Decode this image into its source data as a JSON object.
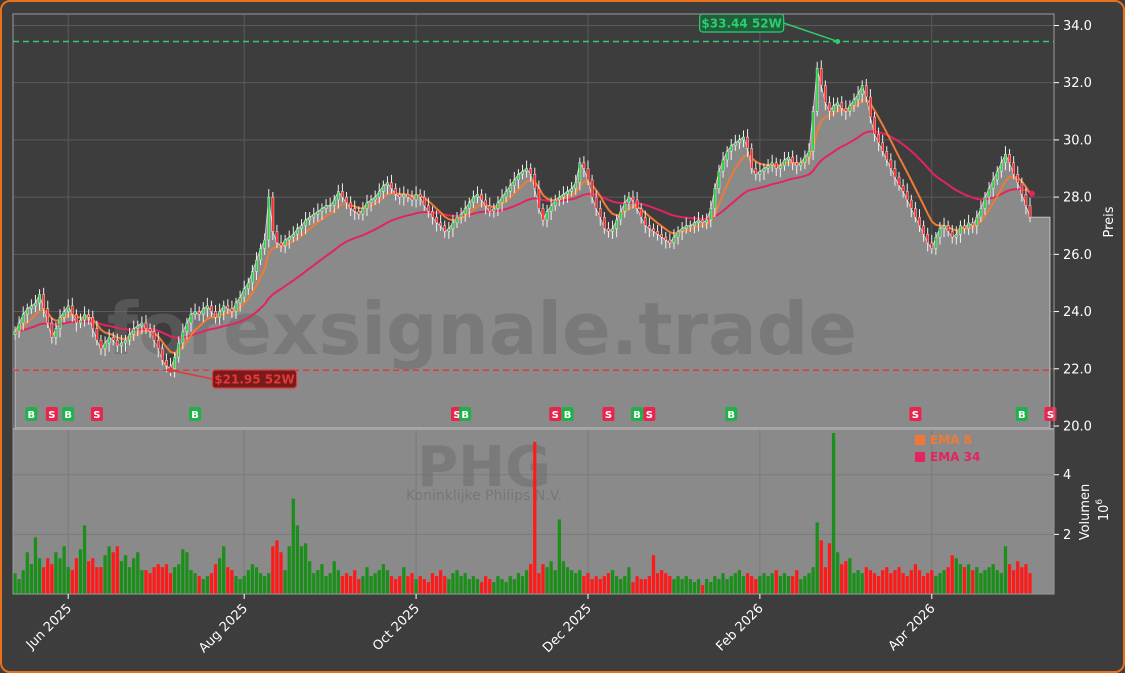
{
  "chart_data": {
    "type": "candlestick",
    "ticker": "PHG",
    "company": "Koninklijke Philips N.V.",
    "watermark": "forexsignale.trade",
    "price_axis": {
      "label": "Preis",
      "ticks": [
        "20.0",
        "22.0",
        "24.0",
        "26.0",
        "28.0",
        "30.0",
        "32.0",
        "34.0"
      ],
      "ylim": [
        20.0,
        34.4
      ]
    },
    "volume_axis": {
      "label": "Volumen",
      "unit": "10^6",
      "unit_base": "10",
      "unit_exp": "6",
      "ticks": [
        "2",
        "4"
      ],
      "ylim": [
        0,
        5.5
      ]
    },
    "x_ticks": [
      "Jun 2025",
      "Aug 2025",
      "Oct 2025",
      "Dec 2025",
      "Feb 2026",
      "Apr 2026"
    ],
    "x_tick_index": [
      13,
      56,
      98,
      140,
      182,
      224
    ],
    "high_52w": {
      "value": 33.44,
      "label": "$33.44 52W",
      "index": 201
    },
    "low_52w": {
      "value": 21.95,
      "label": "$21.95 52W",
      "index": 38
    },
    "legend": [
      {
        "label": "EMA 8",
        "color": "#f07a35"
      },
      {
        "label": "EMA 34",
        "color": "#e3245f"
      }
    ],
    "colors": {
      "up": "#2ecc40",
      "down": "#ff2a2a",
      "vol_up": "#1a8f1a",
      "vol_down": "#ff1a1a",
      "area": "#8a8a8a",
      "ema8": "#f07a35",
      "ema34": "#e3245f",
      "high_line": "#2ecc71",
      "low_line": "#e03a3a"
    },
    "signals": [
      {
        "type": "B",
        "index": 4
      },
      {
        "type": "S",
        "index": 9
      },
      {
        "type": "B",
        "index": 13
      },
      {
        "type": "S",
        "index": 20
      },
      {
        "type": "B",
        "index": 44
      },
      {
        "type": "S",
        "index": 108
      },
      {
        "type": "B",
        "index": 110
      },
      {
        "type": "S",
        "index": 132
      },
      {
        "type": "B",
        "index": 135
      },
      {
        "type": "S",
        "index": 145
      },
      {
        "type": "B",
        "index": 152
      },
      {
        "type": "S",
        "index": 155
      },
      {
        "type": "B",
        "index": 175
      },
      {
        "type": "S",
        "index": 220
      },
      {
        "type": "B",
        "index": 246
      },
      {
        "type": "S",
        "index": 253
      }
    ],
    "close": [
      23.3,
      23.6,
      23.9,
      24.1,
      24.2,
      24.3,
      24.6,
      24.1,
      23.6,
      23.1,
      23.4,
      23.8,
      24.0,
      24.2,
      23.9,
      23.6,
      23.7,
      23.9,
      23.8,
      23.4,
      23.0,
      22.7,
      22.9,
      23.1,
      23.0,
      22.8,
      22.9,
      23.0,
      23.2,
      23.4,
      23.5,
      23.6,
      23.4,
      23.3,
      23.0,
      22.7,
      22.3,
      22.1,
      22.0,
      22.4,
      22.9,
      23.3,
      23.6,
      23.9,
      24.0,
      23.9,
      24.1,
      24.2,
      24.0,
      23.8,
      24.0,
      24.2,
      24.1,
      24.0,
      24.3,
      24.5,
      24.8,
      25.0,
      25.4,
      25.8,
      26.2,
      26.5,
      28.0,
      26.8,
      26.4,
      26.3,
      26.5,
      26.6,
      26.7,
      26.9,
      27.0,
      27.2,
      27.3,
      27.4,
      27.5,
      27.6,
      27.7,
      27.7,
      27.9,
      28.2,
      28.0,
      27.8,
      27.6,
      27.5,
      27.4,
      27.6,
      27.8,
      27.9,
      28.0,
      28.2,
      28.4,
      28.5,
      28.3,
      28.1,
      28.0,
      28.1,
      28.0,
      27.9,
      28.1,
      28.0,
      27.7,
      27.5,
      27.3,
      27.1,
      27.0,
      26.8,
      26.9,
      27.1,
      27.3,
      27.4,
      27.6,
      27.8,
      28.0,
      28.1,
      27.9,
      27.7,
      27.5,
      27.6,
      27.8,
      28.0,
      28.2,
      28.4,
      28.6,
      28.8,
      28.9,
      29.0,
      28.8,
      28.3,
      27.6,
      27.2,
      27.5,
      27.7,
      27.9,
      28.0,
      28.1,
      28.2,
      28.3,
      28.5,
      29.2,
      29.0,
      28.6,
      28.0,
      27.6,
      27.3,
      26.9,
      26.8,
      26.9,
      27.2,
      27.5,
      27.8,
      28.0,
      27.9,
      27.6,
      27.3,
      27.0,
      26.9,
      26.8,
      26.7,
      26.6,
      26.5,
      26.4,
      26.6,
      26.8,
      26.9,
      27.0,
      27.0,
      27.1,
      27.2,
      27.1,
      27.2,
      27.6,
      28.3,
      28.9,
      29.3,
      29.6,
      29.8,
      29.9,
      30.0,
      30.1,
      29.7,
      29.0,
      28.8,
      28.9,
      29.0,
      29.1,
      29.2,
      29.0,
      29.1,
      29.3,
      29.4,
      29.2,
      29.1,
      29.2,
      29.4,
      29.6,
      31.0,
      32.5,
      31.9,
      31.3,
      31.0,
      31.2,
      31.3,
      31.1,
      31.0,
      31.2,
      31.4,
      31.6,
      31.9,
      31.5,
      30.8,
      30.2,
      29.9,
      29.6,
      29.3,
      29.0,
      28.7,
      28.4,
      28.2,
      27.9,
      27.6,
      27.3,
      27.0,
      26.7,
      26.4,
      26.2,
      26.6,
      26.9,
      27.0,
      26.8,
      26.6,
      26.7,
      27.0,
      26.9,
      27.1,
      27.0,
      27.3,
      27.6,
      28.0,
      28.3,
      28.6,
      28.9,
      29.2,
      29.5,
      29.2,
      28.8,
      28.5,
      28.1,
      27.7,
      27.3
    ],
    "volume": [
      0.7,
      0.5,
      0.8,
      1.4,
      1.0,
      1.9,
      1.2,
      0.9,
      1.2,
      1.0,
      1.4,
      1.2,
      1.6,
      0.9,
      0.8,
      1.2,
      1.5,
      2.3,
      1.1,
      1.2,
      0.9,
      0.9,
      1.3,
      1.6,
      1.4,
      1.6,
      1.1,
      1.3,
      0.9,
      1.2,
      1.4,
      0.8,
      0.8,
      0.7,
      0.9,
      1.0,
      0.9,
      1.0,
      0.7,
      0.9,
      1.0,
      1.5,
      1.4,
      0.8,
      0.7,
      0.6,
      0.5,
      0.6,
      0.7,
      1.0,
      1.2,
      1.6,
      0.9,
      0.8,
      0.6,
      0.5,
      0.6,
      0.8,
      1.0,
      0.9,
      0.7,
      0.6,
      0.7,
      1.6,
      1.8,
      1.4,
      0.8,
      1.6,
      3.2,
      2.3,
      1.6,
      1.7,
      1.1,
      0.7,
      0.8,
      1.0,
      0.6,
      0.7,
      1.1,
      0.8,
      0.6,
      0.7,
      0.6,
      0.8,
      0.5,
      0.6,
      0.9,
      0.6,
      0.7,
      0.8,
      1.0,
      0.8,
      0.6,
      0.5,
      0.6,
      0.9,
      0.6,
      0.7,
      0.5,
      0.6,
      0.5,
      0.4,
      0.7,
      0.6,
      0.8,
      0.6,
      0.5,
      0.7,
      0.8,
      0.6,
      0.7,
      0.5,
      0.6,
      0.5,
      0.4,
      0.6,
      0.5,
      0.4,
      0.6,
      0.5,
      0.4,
      0.6,
      0.5,
      0.7,
      0.6,
      0.8,
      1.0,
      5.1,
      0.7,
      1.0,
      0.9,
      1.1,
      0.8,
      2.5,
      1.1,
      0.9,
      0.8,
      0.7,
      0.8,
      0.6,
      0.7,
      0.5,
      0.6,
      0.5,
      0.6,
      0.7,
      0.8,
      0.6,
      0.5,
      0.6,
      0.9,
      0.4,
      0.6,
      0.5,
      0.5,
      0.6,
      1.3,
      0.7,
      0.8,
      0.7,
      0.6,
      0.5,
      0.6,
      0.5,
      0.6,
      0.5,
      0.4,
      0.5,
      0.3,
      0.5,
      0.4,
      0.6,
      0.5,
      0.7,
      0.5,
      0.6,
      0.7,
      0.8,
      0.6,
      0.7,
      0.6,
      0.5,
      0.6,
      0.7,
      0.6,
      0.7,
      0.8,
      0.6,
      0.7,
      0.6,
      0.6,
      0.8,
      0.5,
      0.6,
      0.7,
      0.9,
      2.4,
      1.8,
      0.9,
      1.7,
      5.4,
      1.4,
      1.0,
      1.1,
      1.2,
      0.7,
      0.8,
      0.7,
      0.9,
      0.8,
      0.7,
      0.6,
      0.8,
      0.9,
      0.7,
      0.8,
      0.9,
      0.7,
      0.6,
      0.8,
      1.0,
      0.8,
      0.6,
      0.7,
      0.8,
      0.6,
      0.7,
      0.8,
      0.9,
      1.3,
      1.2,
      1.0,
      0.9,
      1.0,
      0.8,
      0.9,
      0.7,
      0.8,
      0.9,
      1.0,
      0.8,
      0.7,
      1.6,
      1.0,
      0.8,
      1.1,
      0.9,
      1.0,
      0.7
    ]
  }
}
